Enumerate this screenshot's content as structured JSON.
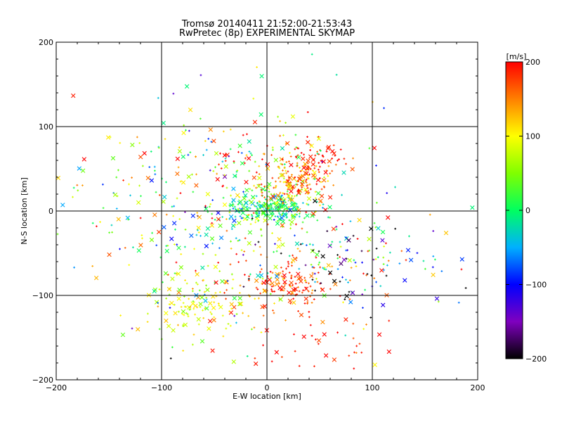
{
  "chart_data": {
    "type": "scatter",
    "title": "Tromsø 20140411 21:52:00-21:53:43",
    "subtitle": "RwPretec (8p) EXPERIMENTAL SKYMAP",
    "xlabel": "E-W location [km]",
    "ylabel": "N-S location [km]",
    "xlim": [
      -200,
      200
    ],
    "ylim": [
      -200,
      200
    ],
    "xticks": [
      "−200",
      "−100",
      "0",
      "100",
      "200"
    ],
    "yticks": [
      "−200",
      "−100",
      "0",
      "100",
      "200"
    ],
    "xtick_values": [
      -200,
      -100,
      0,
      100,
      200
    ],
    "ytick_values": [
      -200,
      -100,
      0,
      100,
      200
    ],
    "grid": true,
    "markers": [
      "plus (small)",
      "cross (large)"
    ],
    "colorbar": {
      "label": "[m/s]",
      "range": [
        -200,
        200
      ],
      "ticks": [
        "200",
        "100",
        "0",
        "−100",
        "−200"
      ],
      "tick_values": [
        200,
        100,
        0,
        -100,
        -200
      ],
      "colormap": [
        "#000000",
        "#7f00bf",
        "#0000ff",
        "#00b0ff",
        "#00ff60",
        "#80ff00",
        "#ffff00",
        "#ff8000",
        "#ff0000"
      ]
    },
    "clusters": [
      {
        "x": 5,
        "y": 3,
        "sx": 22,
        "sy": 9,
        "n": 260,
        "v": 5,
        "sv": 40,
        "desc": "central green/cyan band"
      },
      {
        "x": 28,
        "y": 32,
        "sx": 18,
        "sy": 16,
        "n": 180,
        "v": 150,
        "sv": 45,
        "desc": "yellow/red blob NE"
      },
      {
        "x": 48,
        "y": 62,
        "sx": 14,
        "sy": 10,
        "n": 50,
        "v": 190,
        "sv": 15,
        "desc": "red upper NE"
      },
      {
        "x": 15,
        "y": -85,
        "sx": 22,
        "sy": 15,
        "n": 150,
        "v": 175,
        "sv": 30,
        "desc": "red cluster south"
      },
      {
        "x": -65,
        "y": -115,
        "sx": 28,
        "sy": 20,
        "n": 120,
        "v": 90,
        "sv": 30,
        "desc": "yellow/green SW"
      },
      {
        "x": -35,
        "y": -30,
        "sx": 45,
        "sy": 40,
        "n": 160,
        "v": 20,
        "sv": 100,
        "desc": "mixed west-central"
      },
      {
        "x": 90,
        "y": -65,
        "sx": 35,
        "sy": 25,
        "n": 110,
        "v": -80,
        "sv": 140,
        "desc": "mixed east"
      },
      {
        "x": -120,
        "y": 20,
        "sx": 40,
        "sy": 40,
        "n": 80,
        "v": 70,
        "sv": 90,
        "desc": "sparse west"
      },
      {
        "x": -20,
        "y": 60,
        "sx": 45,
        "sy": 22,
        "n": 110,
        "v": 80,
        "sv": 110,
        "desc": "north band"
      },
      {
        "x": 45,
        "y": -145,
        "sx": 40,
        "sy": 25,
        "n": 45,
        "v": 185,
        "sv": 20,
        "desc": "red south-east"
      },
      {
        "x": 0,
        "y": 0,
        "sx": 110,
        "sy": 110,
        "n": 110,
        "v": 40,
        "sv": 130,
        "desc": "scattered background"
      }
    ]
  }
}
